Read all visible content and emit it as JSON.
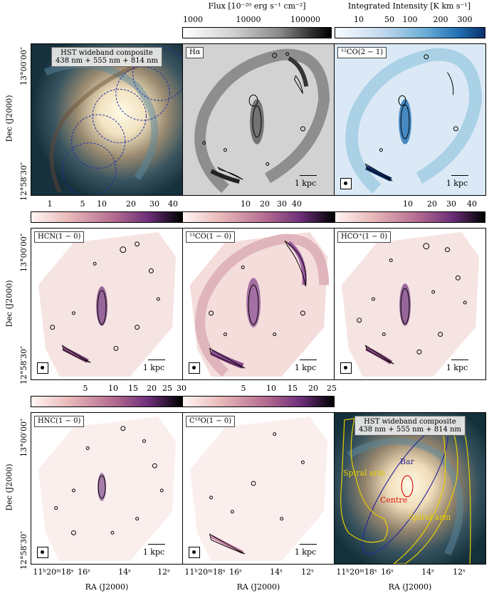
{
  "colorbars": {
    "flux": {
      "title": "Flux [10⁻²⁰ erg s⁻¹ cm⁻²]",
      "ticks": [
        "1000",
        "10000",
        "100000"
      ]
    },
    "intensity": {
      "title": "Integrated Intensity [K km s⁻¹]",
      "ticks": [
        "10",
        "50",
        "100",
        "200",
        "300"
      ]
    },
    "row2_left": {
      "ticks": [
        "1",
        "5",
        "10",
        "20",
        "30",
        "40"
      ]
    },
    "row2_mid": {
      "ticks": [
        "10",
        "20",
        "30",
        "40"
      ]
    },
    "row2_right": {
      "ticks": [
        "10",
        "20",
        "30",
        "40"
      ]
    },
    "row3_left": {
      "ticks": [
        "5",
        "10",
        "15",
        "20",
        "25",
        "30"
      ]
    },
    "row3_mid": {
      "ticks": [
        "5",
        "10",
        "15",
        "20",
        "25"
      ]
    }
  },
  "panels": {
    "hst_top": {
      "line1": "HST wideband composite",
      "line2": "438 nm + 555 nm + 814 nm"
    },
    "halpha": {
      "label": "Hα",
      "scale": "1 kpc"
    },
    "co21": {
      "label": "¹²CO(2 − 1)",
      "scale": "1 kpc"
    },
    "hcn": {
      "label": "HCN(1 − 0)",
      "scale": "1 kpc"
    },
    "co13": {
      "label": "¹³CO(1 − 0)",
      "scale": "1 kpc"
    },
    "hcop": {
      "label": "HCO⁺(1 − 0)",
      "scale": "1 kpc"
    },
    "hnc": {
      "label": "HNC(1 − 0)",
      "scale": "1 kpc"
    },
    "c18o": {
      "label": "C¹⁸O(1 − 0)",
      "scale": "1 kpc"
    },
    "hst_bottom": {
      "line1": "HST wideband composite",
      "line2": "438 nm + 555 nm + 814 nm",
      "regions": {
        "bar": "Bar",
        "centre": "Centre",
        "spiral_left": "Spiral arm",
        "spiral_right": "Spiral arm"
      }
    }
  },
  "axes": {
    "y_title": "Dec (J2000)",
    "y_top": "13°00′00″",
    "y_bottom": "12°58′30″",
    "x_title": "RA (J2000)",
    "x_ticks": [
      "11ʰ20ᵐ18ˢ",
      "16ˢ",
      "14ˢ",
      "12ˢ"
    ]
  },
  "colors": {
    "bar_region": "#2a2a9a",
    "centre_region": "#e01010",
    "spiral_region": "#e8d000",
    "contour": "#000000"
  }
}
